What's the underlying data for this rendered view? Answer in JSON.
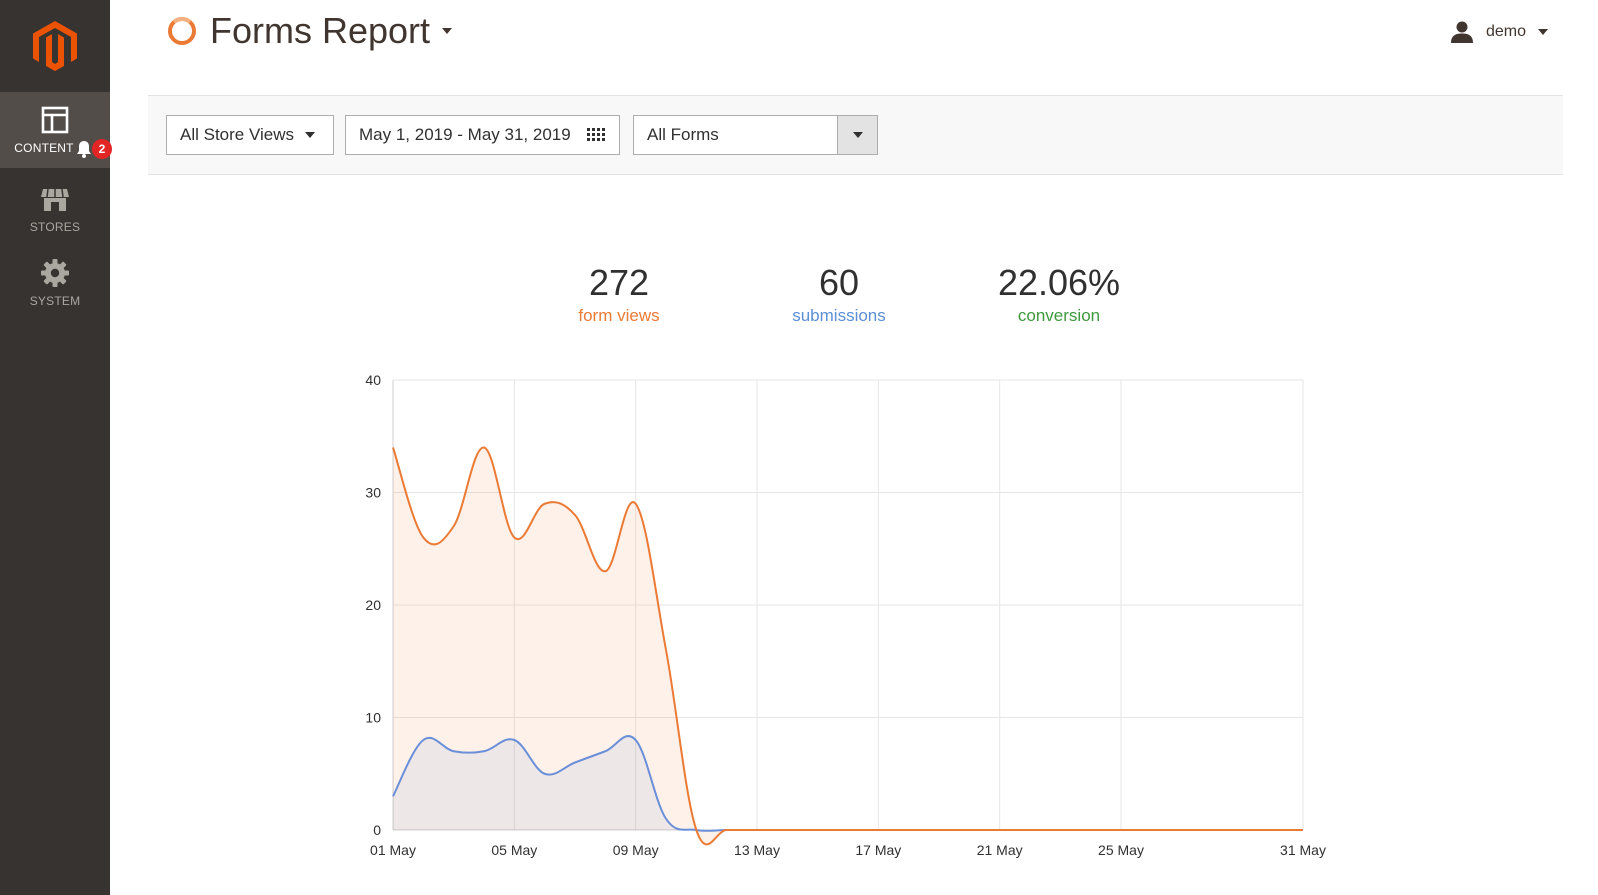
{
  "sidebar": {
    "items": [
      {
        "label": "CONTENT",
        "icon": "content-icon",
        "active": true,
        "badge": "2"
      },
      {
        "label": "STORES",
        "icon": "store-icon",
        "active": false
      },
      {
        "label": "SYSTEM",
        "icon": "gear-icon",
        "active": false
      }
    ]
  },
  "header": {
    "title": "Forms Report",
    "user": "demo"
  },
  "filters": {
    "store_views": "All Store Views",
    "date_range": "May 1, 2019 - May 31, 2019",
    "forms": "All Forms"
  },
  "stats": [
    {
      "value": "272",
      "label": "form views",
      "color": "#eb7a35"
    },
    {
      "value": "60",
      "label": "submissions",
      "color": "#5b8fd6"
    },
    {
      "value": "22.06%",
      "label": "conversion",
      "color": "#3e9a3e"
    }
  ],
  "colors": {
    "accent": "#eb7a35",
    "views": "#eb7a35",
    "submissions": "#6a8fd8",
    "sidebar": "#373330"
  },
  "chart_data": {
    "type": "area",
    "x": [
      "01 May",
      "02 May",
      "03 May",
      "04 May",
      "05 May",
      "06 May",
      "07 May",
      "08 May",
      "09 May",
      "10 May",
      "11 May",
      "12 May",
      "13 May",
      "14 May",
      "15 May",
      "16 May",
      "17 May",
      "18 May",
      "19 May",
      "20 May",
      "21 May",
      "22 May",
      "23 May",
      "24 May",
      "25 May",
      "26 May",
      "27 May",
      "28 May",
      "29 May",
      "30 May",
      "31 May"
    ],
    "x_tick_labels": [
      "01 May",
      "05 May",
      "09 May",
      "13 May",
      "17 May",
      "21 May",
      "25 May",
      "31 May"
    ],
    "y_tick_labels": [
      "0",
      "10",
      "20",
      "30",
      "40"
    ],
    "ylim": [
      0,
      40
    ],
    "series": [
      {
        "name": "form views",
        "values": [
          34,
          26,
          27,
          34,
          26,
          29,
          28,
          23,
          29,
          16,
          0,
          0,
          0,
          0,
          0,
          0,
          0,
          0,
          0,
          0,
          0,
          0,
          0,
          0,
          0,
          0,
          0,
          0,
          0,
          0,
          0
        ]
      },
      {
        "name": "submissions",
        "values": [
          3,
          8,
          7,
          7,
          8,
          5,
          6,
          7,
          8,
          1,
          0,
          0,
          0,
          0,
          0,
          0,
          0,
          0,
          0,
          0,
          0,
          0,
          0,
          0,
          0,
          0,
          0,
          0,
          0,
          0,
          0
        ]
      }
    ],
    "grid": true
  }
}
